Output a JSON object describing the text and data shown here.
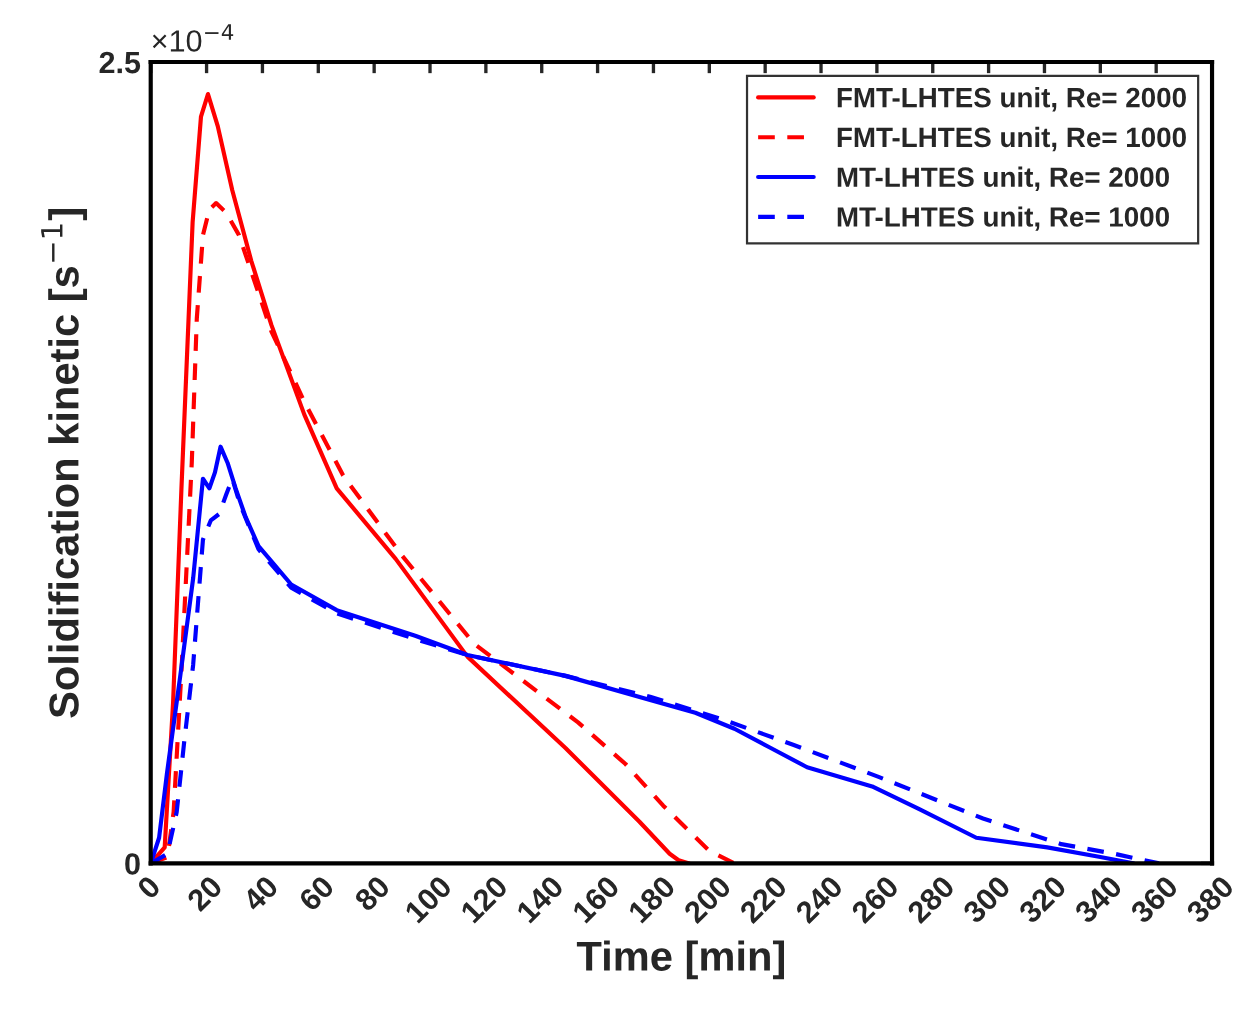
{
  "chart_data": {
    "type": "line",
    "xlabel": "Time [min]",
    "ylabel": "Solidification kinetic [s$^{−1}$]",
    "annotations": [
      "×10$^{−4}$"
    ],
    "xlim": [
      0,
      380
    ],
    "xticks": [
      0,
      20,
      40,
      60,
      80,
      100,
      120,
      140,
      160,
      180,
      200,
      220,
      240,
      260,
      280,
      300,
      320,
      340,
      360,
      380
    ],
    "ylim": [
      0,
      2.5
    ],
    "yticks": [
      0,
      2.5
    ],
    "grid": false,
    "legend": "top right",
    "series": [
      {
        "name": "FMT-LHTES unit, Re= 2000",
        "color": "#ff0000",
        "line_style": "solid",
        "x": [
          0,
          5,
          8,
          11,
          15,
          18,
          20.5,
          24,
          29.2,
          36,
          43.2,
          55,
          66.6,
          87.7,
          113.4,
          148.5,
          160,
          175,
          185.8,
          189,
          192.8
        ],
        "values": [
          0,
          0.05,
          0.5,
          1.17,
          2.0,
          2.33,
          2.4,
          2.3,
          2.1,
          1.88,
          1.68,
          1.4,
          1.17,
          0.95,
          0.645,
          0.36,
          0.26,
          0.13,
          0.03,
          0.01,
          0
        ]
      },
      {
        "name": "FMT-LHTES unit, Re= 1000",
        "color": "#ff0000",
        "line_style": "dashed",
        "x": [
          0,
          6,
          8.2,
          11,
          14.7,
          16.5,
          18.7,
          21,
          23.4,
          27,
          31.6,
          43.2,
          55,
          68.9,
          90,
          115.7,
          153,
          170,
          183.5,
          199.9,
          209
        ],
        "values": [
          0,
          0.02,
          0.16,
          0.6,
          1.25,
          1.7,
          1.96,
          2.04,
          2.06,
          2.03,
          1.96,
          1.66,
          1.44,
          1.21,
          0.96,
          0.686,
          0.44,
          0.31,
          0.18,
          0.04,
          0
        ]
      },
      {
        "name": "MT-LHTES unit, Re= 2000",
        "color": "#0000ff",
        "line_style": "solid",
        "x": [
          0,
          3,
          5.8,
          10.5,
          15.2,
          18.7,
          21,
          23,
          25,
          27.5,
          30.4,
          34,
          38.6,
          50.3,
          66.6,
          94.7,
          113.4,
          148.5,
          178.8,
          195,
          209,
          222,
          235,
          258.3,
          275,
          295.6,
          321,
          340,
          351.8
        ],
        "values": [
          0,
          0.08,
          0.28,
          0.58,
          0.89,
          1.2,
          1.17,
          1.22,
          1.3,
          1.25,
          1.17,
          1.08,
          0.99,
          0.87,
          0.79,
          0.71,
          0.65,
          0.585,
          0.51,
          0.47,
          0.42,
          0.36,
          0.3,
          0.24,
          0.17,
          0.08,
          0.05,
          0.02,
          0
        ]
      },
      {
        "name": "MT-LHTES unit, Re= 1000",
        "color": "#0000ff",
        "line_style": "dashed",
        "x": [
          0,
          6,
          9.3,
          12,
          15.2,
          18.7,
          21.5,
          24.5,
          27,
          29.2,
          32,
          38.6,
          50.3,
          66.6,
          94.7,
          113.4,
          148.5,
          178.8,
          204.5,
          230,
          260.6,
          298,
          326,
          345,
          361
        ],
        "values": [
          0,
          0.03,
          0.16,
          0.38,
          0.62,
          1.01,
          1.07,
          1.09,
          1.15,
          1.2,
          1.12,
          0.98,
          0.86,
          0.78,
          0.7,
          0.65,
          0.585,
          0.52,
          0.45,
          0.37,
          0.27,
          0.14,
          0.06,
          0.03,
          0
        ]
      }
    ]
  }
}
